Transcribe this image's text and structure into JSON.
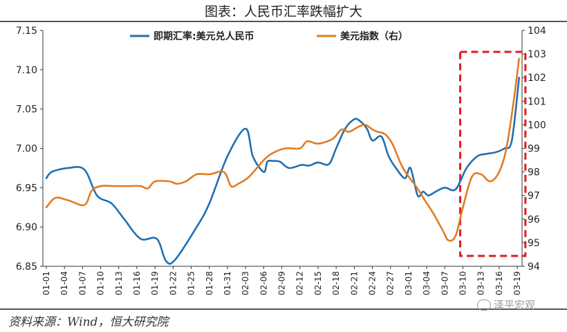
{
  "title": "图表：人民币汇率跌幅扩大",
  "source": "资料来源：Wind，恒大研究院",
  "watermark": "泽平宏观",
  "chart_data": {
    "type": "line",
    "title": "图表：人民币汇率跌幅扩大",
    "xlabel": "",
    "ylabel": "",
    "ylim": [
      6.85,
      7.15
    ],
    "y2lim": [
      94,
      104
    ],
    "yticks": [
      "7.15",
      "7.10",
      "7.05",
      "7.00",
      "6.95",
      "6.90",
      "6.85"
    ],
    "y2ticks": [
      "104",
      "103",
      "102",
      "101",
      "100",
      "99",
      "98",
      "97",
      "96",
      "95",
      "94"
    ],
    "x_ticks": [
      "01-01",
      "01-04",
      "01-07",
      "01-10",
      "01-13",
      "01-16",
      "01-19",
      "01-22",
      "01-25",
      "01-28",
      "01-31",
      "02-03",
      "02-06",
      "02-09",
      "02-12",
      "02-15",
      "02-18",
      "02-21",
      "02-24",
      "02-27",
      "03-01",
      "03-04",
      "03-07",
      "03-10",
      "03-13",
      "03-16",
      "03-19"
    ],
    "legend_position": "top-center",
    "highlight_box": "03-09 to 03-19",
    "series": [
      {
        "name": "即期汇率:美元兑人民币",
        "axis": "left",
        "color": "#1f6fb2",
        "x": [
          0,
          0.3,
          1.2,
          2.1,
          2.8,
          3.6,
          4.3,
          5.2,
          6.1,
          6.6,
          7.1,
          8.3,
          9.0,
          10.0,
          11.0,
          11.4,
          12.0,
          12.2,
          12.5,
          12.9,
          13.4,
          14.1,
          14.5,
          15.0,
          15.6,
          16.0,
          16.5,
          17.0,
          17.3,
          17.7,
          18.0,
          18.5,
          18.9,
          19.3,
          19.8,
          20.1,
          20.5,
          20.8,
          21.1,
          21.5,
          22.0,
          22.6,
          23.2,
          23.8,
          24.3,
          24.8,
          25.3,
          25.7,
          26.1
        ],
        "y": [
          6.962,
          6.97,
          6.975,
          6.973,
          6.94,
          6.93,
          6.91,
          6.885,
          6.885,
          6.857,
          6.858,
          6.9,
          6.93,
          6.99,
          7.025,
          6.99,
          6.97,
          6.983,
          6.984,
          6.983,
          6.975,
          6.979,
          6.978,
          6.982,
          6.98,
          7.0,
          7.025,
          7.037,
          7.035,
          7.025,
          7.01,
          7.015,
          6.99,
          6.975,
          6.962,
          6.975,
          6.94,
          6.945,
          6.94,
          6.945,
          6.95,
          6.948,
          6.975,
          6.99,
          6.993,
          6.995,
          7.0,
          7.01,
          7.09
        ]
      },
      {
        "name": "美元指数（右）",
        "axis": "right",
        "color": "#e07b25",
        "x": [
          0,
          0.5,
          1.2,
          2.1,
          2.5,
          3.0,
          3.8,
          4.5,
          5.2,
          5.6,
          6.0,
          6.8,
          7.2,
          7.7,
          8.3,
          9.0,
          9.8,
          10.2,
          10.6,
          11.2,
          12.0,
          12.5,
          13.2,
          14.0,
          14.4,
          15.0,
          15.8,
          16.3,
          16.7,
          17.2,
          17.6,
          18.0,
          18.3,
          18.7,
          19.1,
          19.6,
          20.0,
          20.4,
          20.9,
          21.4,
          21.9,
          22.2,
          22.6,
          23.0,
          23.5,
          24.0,
          24.5,
          25.0,
          25.4,
          25.8,
          26.1
        ],
        "y": [
          96.5,
          96.9,
          96.8,
          96.6,
          97.2,
          97.4,
          97.4,
          97.4,
          97.4,
          97.3,
          97.6,
          97.6,
          97.5,
          97.6,
          97.9,
          97.9,
          98.0,
          97.4,
          97.5,
          97.8,
          98.5,
          98.8,
          99.0,
          99.0,
          99.3,
          99.2,
          99.4,
          99.8,
          99.7,
          99.9,
          100.0,
          99.8,
          99.7,
          99.6,
          99.2,
          98.3,
          97.8,
          97.4,
          96.8,
          96.2,
          95.5,
          95.1,
          95.3,
          96.5,
          97.8,
          97.9,
          97.6,
          98.0,
          99.0,
          101.0,
          102.8
        ]
      }
    ]
  }
}
